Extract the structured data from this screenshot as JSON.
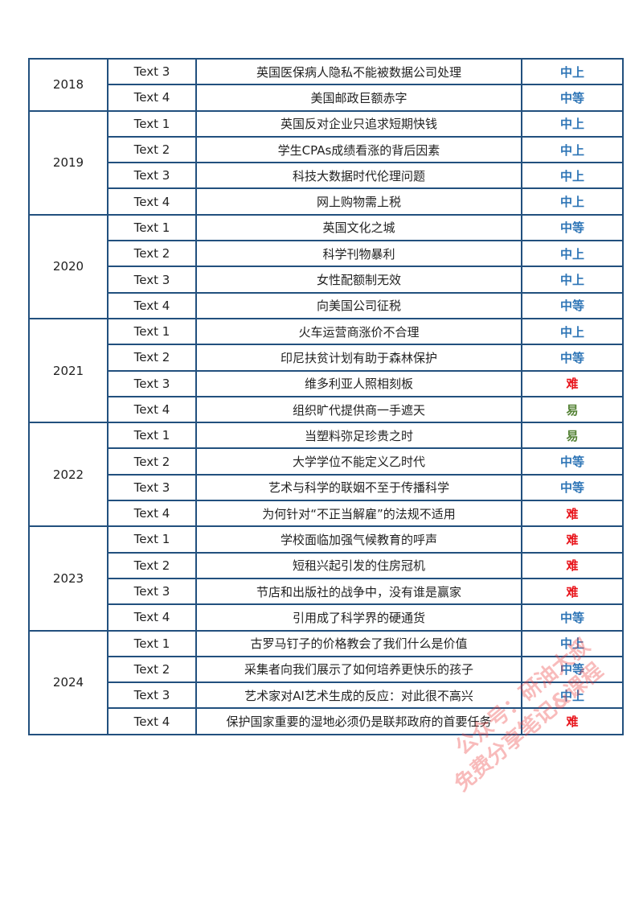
{
  "colors": {
    "border": "#22507e",
    "中上": "#2e75b6",
    "中等": "#2e75b6",
    "难": "#e8141b",
    "易": "#548235"
  },
  "watermark": {
    "line1": "公众号：研油大叔",
    "line2": "免费分享笔记&课程"
  },
  "groups": [
    {
      "year": "2018",
      "rows": [
        {
          "text": "Text 3",
          "title": "英国医保病人隐私不能被数据公司处理",
          "level": "中上"
        },
        {
          "text": "Text 4",
          "title": "美国邮政巨额赤字",
          "level": "中等"
        }
      ]
    },
    {
      "year": "2019",
      "rows": [
        {
          "text": "Text 1",
          "title": "英国反对企业只追求短期快钱",
          "level": "中上"
        },
        {
          "text": "Text 2",
          "title": "学生CPAs成绩看涨的背后因素",
          "level": "中上"
        },
        {
          "text": "Text 3",
          "title": "科技大数据时代伦理问题",
          "level": "中上"
        },
        {
          "text": "Text 4",
          "title": "网上购物需上税",
          "level": "中上"
        }
      ]
    },
    {
      "year": "2020",
      "rows": [
        {
          "text": "Text 1",
          "title": "英国文化之城",
          "level": "中等"
        },
        {
          "text": "Text 2",
          "title": "科学刊物暴利",
          "level": "中上"
        },
        {
          "text": "Text 3",
          "title": "女性配额制无效",
          "level": "中上"
        },
        {
          "text": "Text 4",
          "title": "向美国公司征税",
          "level": "中等"
        }
      ]
    },
    {
      "year": "2021",
      "rows": [
        {
          "text": "Text 1",
          "title": "火车运营商涨价不合理",
          "level": "中上"
        },
        {
          "text": "Text 2",
          "title": "印尼扶贫计划有助于森林保护",
          "level": "中等"
        },
        {
          "text": "Text 3",
          "title": "维多利亚人照相刻板",
          "level": "难"
        },
        {
          "text": "Text 4",
          "title": "组织旷代提供商一手遮天",
          "level": "易"
        }
      ]
    },
    {
      "year": "2022",
      "rows": [
        {
          "text": "Text 1",
          "title": "当塑料弥足珍贵之时",
          "level": "易"
        },
        {
          "text": "Text 2",
          "title": "大学学位不能定义乙时代",
          "level": "中等"
        },
        {
          "text": "Text 3",
          "title": "艺术与科学的联姻不至于传播科学",
          "level": "中等"
        },
        {
          "text": "Text 4",
          "title": "为何针对“不正当解雇”的法规不适用",
          "level": "难"
        }
      ]
    },
    {
      "year": "2023",
      "rows": [
        {
          "text": "Text 1",
          "title": "学校面临加强气候教育的呼声",
          "level": "难"
        },
        {
          "text": "Text 2",
          "title": "短租兴起引发的住房冠机",
          "level": "难"
        },
        {
          "text": "Text 3",
          "title": "节店和出版社的战争中，没有谁是赢家",
          "level": "难"
        },
        {
          "text": "Text 4",
          "title": "引用成了科学界的硬通货",
          "level": "中等"
        }
      ]
    },
    {
      "year": "2024",
      "rows": [
        {
          "text": "Text 1",
          "title": "古罗马钉子的价格教会了我们什么是价值",
          "level": "中上"
        },
        {
          "text": "Text 2",
          "title": "采集者向我们展示了如何培养更快乐的孩子",
          "level": "中等"
        },
        {
          "text": "Text 3",
          "title": "艺术家对AI艺术生成的反应：对此很不高兴",
          "level": "中上"
        },
        {
          "text": "Text 4",
          "title": "保护国家重要的湿地必须仍是联邦政府的首要任务",
          "level": "难"
        }
      ]
    }
  ]
}
